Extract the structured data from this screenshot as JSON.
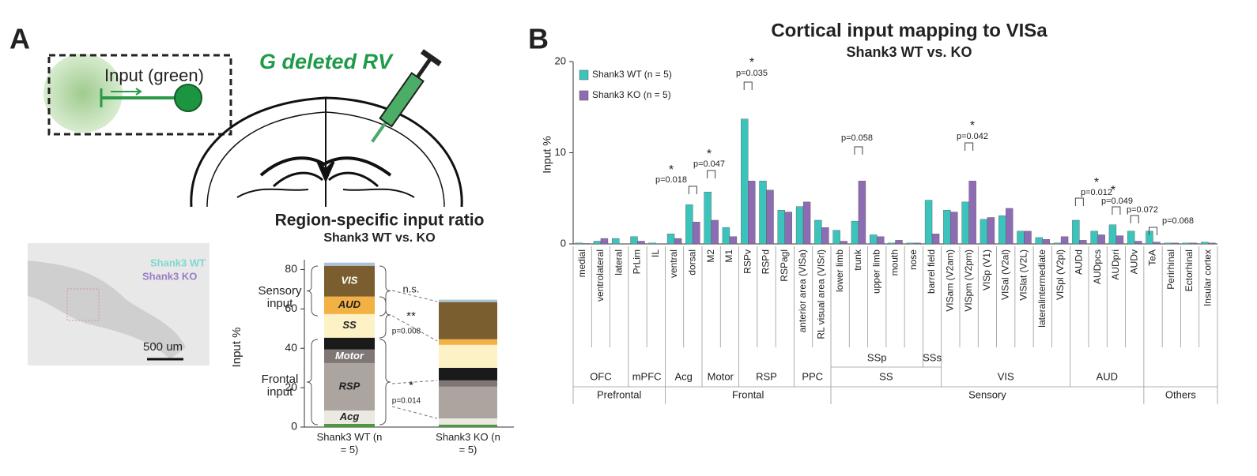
{
  "panel_a": {
    "label": "A",
    "input_label": "Input (green)",
    "virus_label": "G deleted RV",
    "wt_label": "Shank3 WT",
    "ko_label": "Shank3 KO",
    "scale_label": "500 um"
  },
  "panel_b": {
    "label": "B"
  },
  "chart_data": [
    {
      "type": "stacked_bar",
      "title": "Region-specific input ratio",
      "subtitle": "Shank3 WT vs. KO",
      "y_label": "Input %",
      "categories": [
        "Shank3 WT (n = 5)",
        "Shank3 KO (n = 5)"
      ],
      "series": [
        {
          "color": "#4a9a3c",
          "values": [
            1.6,
            1.2
          ]
        },
        {
          "name": "Acg",
          "color": "#ece8e2",
          "values": [
            6.8,
            3.2
          ]
        },
        {
          "name": "RSP",
          "color": "#aca49e",
          "values": [
            24.1,
            16.1
          ]
        },
        {
          "name": "Motor",
          "color": "#7e7775",
          "values": [
            6.9,
            3.2
          ]
        },
        {
          "color": "#1a1a1a",
          "values": [
            6.0,
            6.4
          ]
        },
        {
          "name": "SS",
          "color": "#fdf1c6",
          "values": [
            12.0,
            11.7
          ]
        },
        {
          "name": "AUD",
          "color": "#f3b043",
          "values": [
            8.9,
            2.8
          ]
        },
        {
          "name": "VIS",
          "color": "#7a5e30",
          "values": [
            15.6,
            18.9
          ]
        },
        {
          "color": "#a9c4d6",
          "values": [
            1.6,
            1.2
          ]
        }
      ],
      "ylim": [
        0,
        85
      ],
      "yticks": [
        0,
        20,
        40,
        60,
        80
      ],
      "group_labels": [
        "Sensory input",
        "Frontal input"
      ],
      "annotations": [
        "n.s.",
        "**",
        "p=0.008",
        "*",
        "p=0.014"
      ]
    },
    {
      "type": "bar",
      "title": "Cortical input mapping to VISa",
      "subtitle": "Shank3 WT vs. KO",
      "y_label": "Input %",
      "categories": [
        "medial",
        "ventrolateral",
        "lateral",
        "PrLim",
        "IL",
        "ventral",
        "dorsal",
        "M2",
        "M1",
        "RSPv",
        "RSPd",
        "RSPagl",
        "anterior area (VISa)",
        "RL visual area (VISrl)",
        "lower limb",
        "trunk",
        "upper limb",
        "mouth",
        "nose",
        "barrel field",
        "VISam (V2am)",
        "VISpm (V2pm)",
        "VISp (V1)",
        "VISal (V2al)",
        "VISlat (V2L)",
        "lateralintermediate",
        "VISpl (V2pl)",
        "AUDd",
        "AUDpcs",
        "AUDpri",
        "AUDv",
        "TeA",
        "Perirhinal",
        "Ectorhinal",
        "Insular cortex"
      ],
      "series": [
        {
          "name": "Shank3 WT (n = 5)",
          "color": "#3cc4bc",
          "values": [
            0.1,
            0.3,
            0.6,
            0.8,
            0.1,
            1.1,
            4.3,
            5.7,
            1.8,
            13.7,
            6.9,
            3.7,
            4.1,
            2.6,
            1.5,
            2.5,
            1.0,
            0.1,
            0.1,
            4.8,
            3.7,
            4.6,
            2.7,
            3.1,
            1.4,
            0.7,
            0.1,
            2.6,
            1.4,
            2.1,
            1.4,
            1.4,
            0.1,
            0.1,
            0.2
          ]
        },
        {
          "name": "Shank3 KO (n = 5)",
          "color": "#8e6cb4",
          "values": [
            0.05,
            0.6,
            0,
            0.3,
            0,
            0.6,
            2.4,
            2.6,
            0.8,
            6.9,
            5.9,
            3.5,
            4.6,
            1.8,
            0.3,
            6.9,
            0.8,
            0.4,
            0.1,
            1.1,
            3.5,
            6.9,
            2.9,
            3.9,
            1.4,
            0.5,
            0.8,
            0.4,
            1.0,
            0.9,
            0.3,
            0.2,
            0.1,
            0.1,
            0.1
          ]
        }
      ],
      "ylim": [
        0,
        20
      ],
      "yticks": [
        0,
        10,
        20
      ],
      "grid": false,
      "annotations": [
        "*",
        "p=0.018",
        "*",
        "p=0.047",
        "*",
        "p=0.035",
        "p=0.058",
        "*",
        "p=0.042",
        "*",
        "p=0.012",
        "*",
        "p=0.049",
        "p=0.072",
        "p=0.068"
      ],
      "subgroup_labels": [
        "SSp",
        "SSs"
      ],
      "group_labels": [
        "OFC",
        "mPFC",
        "Acg",
        "Motor",
        "RSP",
        "PPC",
        "SS",
        "VIS",
        "AUD"
      ],
      "division_labels": [
        "Prefrontal",
        "Frontal",
        "Sensory",
        "Others"
      ]
    }
  ]
}
